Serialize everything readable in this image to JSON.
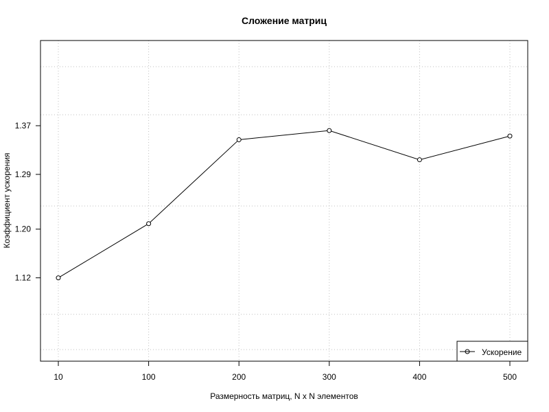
{
  "chart_data": {
    "type": "line",
    "title": "Сложение матриц",
    "xlabel": "Размерность матриц, N x N элементов",
    "ylabel": "Коэффициент ускорения",
    "categories": [
      "10",
      "100",
      "200",
      "300",
      "400",
      "500"
    ],
    "series": [
      {
        "name": "Ускорение",
        "values": [
          1.12,
          1.209,
          1.347,
          1.362,
          1.314,
          1.353
        ]
      }
    ],
    "y_ticks": [
      1.12,
      1.2,
      1.29,
      1.37
    ],
    "y_tick_labels": [
      "1.12",
      "1.20",
      "1.29",
      "1.37"
    ],
    "y_grid": [
      1.002,
      1.002,
      1.06,
      1.238,
      1.388,
      1.467
    ],
    "ylim": [
      0.983,
      1.51
    ],
    "grid": true,
    "grid_style": "dotted",
    "legend_position": "bottom-right",
    "marker": "open-circle",
    "line_color": "#000000",
    "grid_color": "#bfbfbf"
  }
}
